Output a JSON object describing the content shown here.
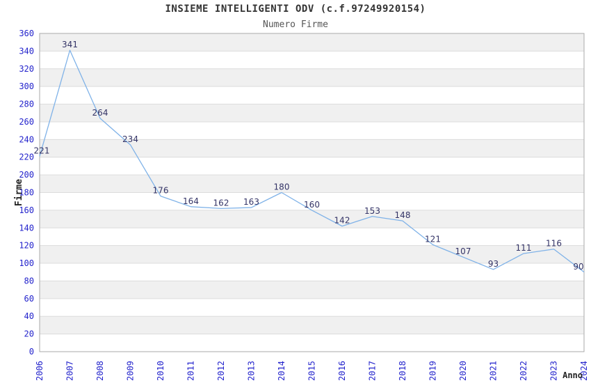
{
  "chart_data": {
    "type": "line",
    "title": "INSIEME INTELLIGENTI ODV (c.f.97249920154)",
    "subtitle": "Numero Firme",
    "xlabel": "Anno",
    "ylabel": "Firme",
    "categories": [
      "2006",
      "2007",
      "2008",
      "2009",
      "2010",
      "2011",
      "2012",
      "2013",
      "2014",
      "2015",
      "2016",
      "2017",
      "2018",
      "2019",
      "2020",
      "2021",
      "2022",
      "2023",
      "2024"
    ],
    "series": [
      {
        "name": "Numero Firme",
        "values": [
          221,
          341,
          264,
          234,
          176,
          164,
          162,
          163,
          180,
          160,
          142,
          153,
          148,
          121,
          107,
          93,
          111,
          116,
          90
        ]
      }
    ],
    "ylim": [
      0,
      360
    ],
    "ytick_step": 20,
    "grid": true,
    "banded_background": true,
    "legend": "none",
    "colors": {
      "line": "#7fb2e8",
      "data_label": "#333366",
      "tick_label": "#2323cc",
      "band_gray": "#f0f0f0",
      "gridline": "#dcdcdc",
      "plot_border": "#aaaaaa",
      "title": "#333333",
      "subtitle": "#555555",
      "axis_title": "#222222",
      "background": "#ffffff"
    }
  }
}
